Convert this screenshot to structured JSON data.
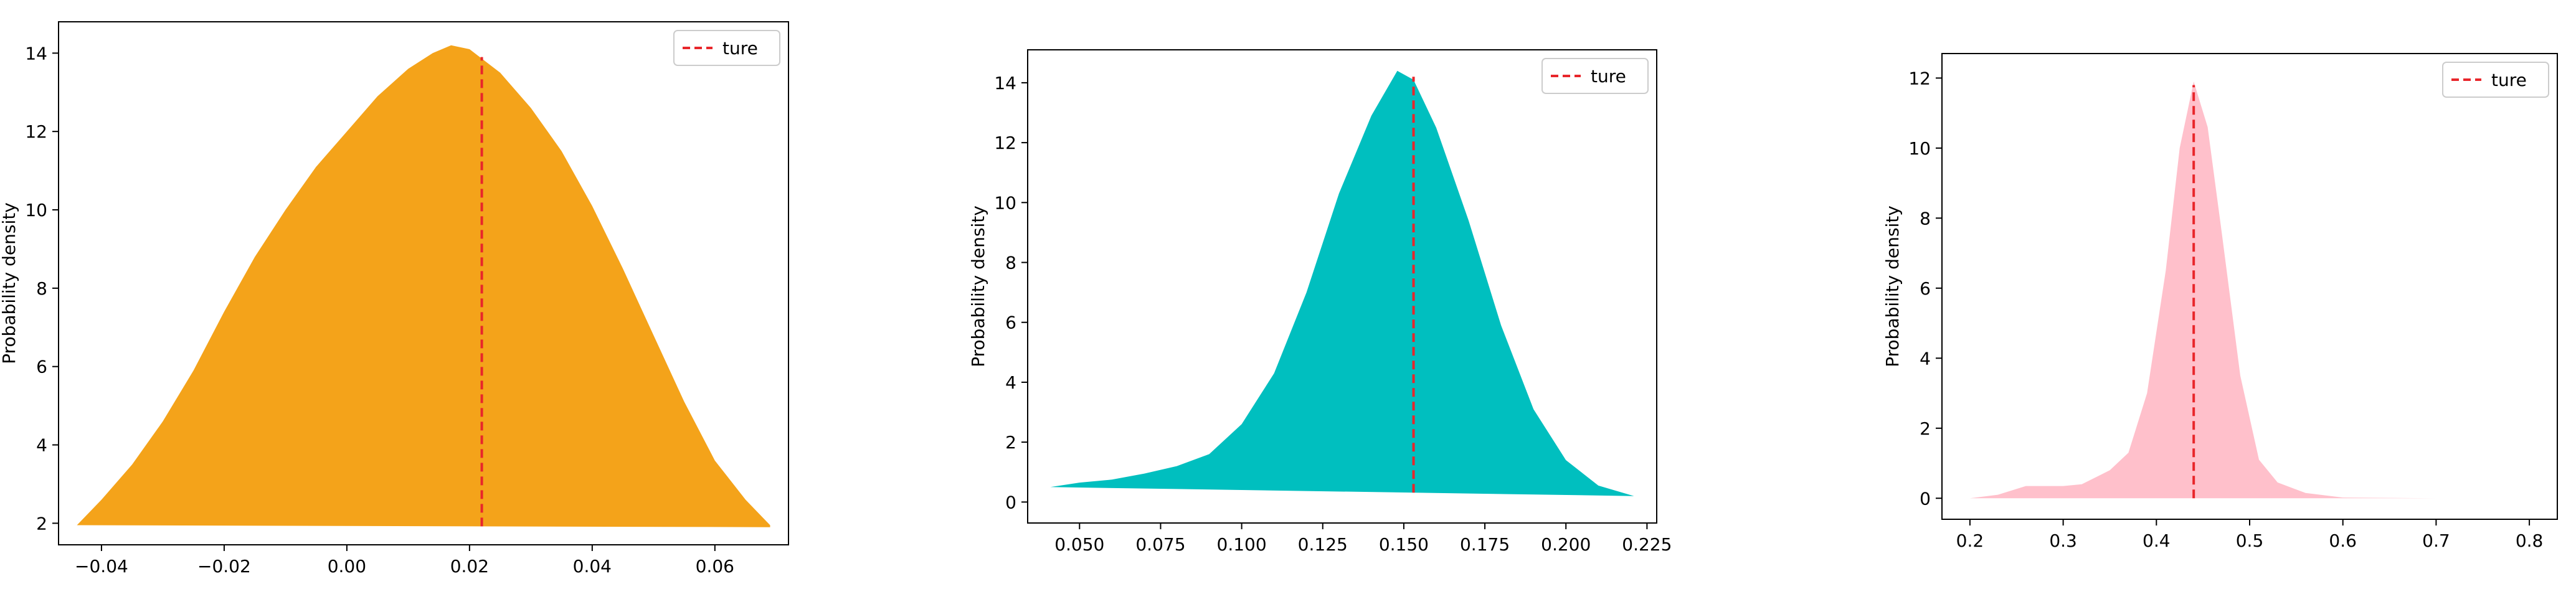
{
  "chart_data": [
    {
      "type": "area",
      "fill_color": "#F4A31A",
      "ylabel": "Probability density",
      "xlim": [
        -0.047,
        0.072
      ],
      "ylim": [
        1.45,
        14.8
      ],
      "xticks": [
        -0.04,
        -0.02,
        0.0,
        0.02,
        0.04,
        0.06
      ],
      "xtick_labels": [
        "−0.04",
        "−0.02",
        "0.00",
        "0.02",
        "0.04",
        "0.06"
      ],
      "yticks": [
        2,
        4,
        6,
        8,
        10,
        12,
        14
      ],
      "ytick_labels": [
        "2",
        "4",
        "6",
        "8",
        "10",
        "12",
        "14"
      ],
      "upper": [
        [
          -0.044,
          1.95
        ],
        [
          -0.04,
          2.6
        ],
        [
          -0.035,
          3.5
        ],
        [
          -0.03,
          4.6
        ],
        [
          -0.025,
          5.9
        ],
        [
          -0.02,
          7.4
        ],
        [
          -0.015,
          8.8
        ],
        [
          -0.01,
          10.0
        ],
        [
          -0.005,
          11.1
        ],
        [
          0.0,
          12.0
        ],
        [
          0.005,
          12.9
        ],
        [
          0.01,
          13.6
        ],
        [
          0.014,
          14.0
        ],
        [
          0.017,
          14.2
        ],
        [
          0.02,
          14.1
        ],
        [
          0.025,
          13.5
        ],
        [
          0.03,
          12.6
        ],
        [
          0.035,
          11.5
        ],
        [
          0.04,
          10.1
        ],
        [
          0.045,
          8.5
        ],
        [
          0.05,
          6.8
        ],
        [
          0.055,
          5.1
        ],
        [
          0.06,
          3.6
        ],
        [
          0.065,
          2.6
        ],
        [
          0.069,
          1.95
        ]
      ],
      "lower": [
        [
          -0.044,
          1.95
        ],
        [
          0.069,
          1.9
        ]
      ],
      "true_value": 0.022,
      "true_line_ymax": 13.9,
      "legend": {
        "label": "ture",
        "color": "#E8262B",
        "loc": "upper right"
      }
    },
    {
      "type": "area",
      "fill_color": "#00BFBF",
      "ylabel": "Probability density",
      "xlim": [
        0.034,
        0.228
      ],
      "ylim": [
        -0.7,
        15.1
      ],
      "xticks": [
        0.05,
        0.075,
        0.1,
        0.125,
        0.15,
        0.175,
        0.2,
        0.225
      ],
      "xtick_labels": [
        "0.050",
        "0.075",
        "0.100",
        "0.125",
        "0.150",
        "0.175",
        "0.200",
        "0.225"
      ],
      "yticks": [
        0,
        2,
        4,
        6,
        8,
        10,
        12,
        14
      ],
      "ytick_labels": [
        "0",
        "2",
        "4",
        "6",
        "8",
        "10",
        "12",
        "14"
      ],
      "upper": [
        [
          0.041,
          0.5
        ],
        [
          0.05,
          0.65
        ],
        [
          0.06,
          0.75
        ],
        [
          0.07,
          0.95
        ],
        [
          0.08,
          1.2
        ],
        [
          0.09,
          1.6
        ],
        [
          0.1,
          2.6
        ],
        [
          0.11,
          4.3
        ],
        [
          0.12,
          7.0
        ],
        [
          0.13,
          10.3
        ],
        [
          0.14,
          12.9
        ],
        [
          0.148,
          14.4
        ],
        [
          0.153,
          14.1
        ],
        [
          0.16,
          12.5
        ],
        [
          0.17,
          9.4
        ],
        [
          0.18,
          5.9
        ],
        [
          0.19,
          3.1
        ],
        [
          0.2,
          1.4
        ],
        [
          0.21,
          0.55
        ],
        [
          0.221,
          0.2
        ]
      ],
      "lower": [
        [
          0.041,
          0.5
        ],
        [
          0.221,
          0.2
        ]
      ],
      "true_value": 0.153,
      "true_line_ymax": 14.2,
      "legend": {
        "label": "ture",
        "color": "#E8262B",
        "loc": "upper right"
      }
    },
    {
      "type": "area",
      "fill_color": "#FFC0CB",
      "ylabel": "Probability density",
      "xlim": [
        0.17,
        0.83
      ],
      "ylim": [
        -0.6,
        12.7
      ],
      "xticks": [
        0.2,
        0.3,
        0.4,
        0.5,
        0.6,
        0.7,
        0.8
      ],
      "xtick_labels": [
        "0.2",
        "0.3",
        "0.4",
        "0.5",
        "0.6",
        "0.7",
        "0.8"
      ],
      "yticks": [
        0,
        2,
        4,
        6,
        8,
        10,
        12
      ],
      "ytick_labels": [
        "0",
        "2",
        "4",
        "6",
        "8",
        "10",
        "12"
      ],
      "upper": [
        [
          0.2,
          0.0
        ],
        [
          0.23,
          0.1
        ],
        [
          0.26,
          0.35
        ],
        [
          0.3,
          0.35
        ],
        [
          0.32,
          0.4
        ],
        [
          0.35,
          0.8
        ],
        [
          0.37,
          1.3
        ],
        [
          0.39,
          3.0
        ],
        [
          0.41,
          6.5
        ],
        [
          0.425,
          10.0
        ],
        [
          0.44,
          11.9
        ],
        [
          0.455,
          10.6
        ],
        [
          0.47,
          7.6
        ],
        [
          0.49,
          3.5
        ],
        [
          0.51,
          1.1
        ],
        [
          0.53,
          0.45
        ],
        [
          0.56,
          0.15
        ],
        [
          0.6,
          0.02
        ],
        [
          0.7,
          0.0
        ],
        [
          0.8,
          0.0
        ]
      ],
      "lower": [
        [
          0.2,
          0.0
        ],
        [
          0.8,
          0.0
        ]
      ],
      "true_value": 0.44,
      "true_line_ymax": 11.8,
      "legend": {
        "label": "ture",
        "color": "#E8262B",
        "loc": "upper right"
      }
    }
  ]
}
